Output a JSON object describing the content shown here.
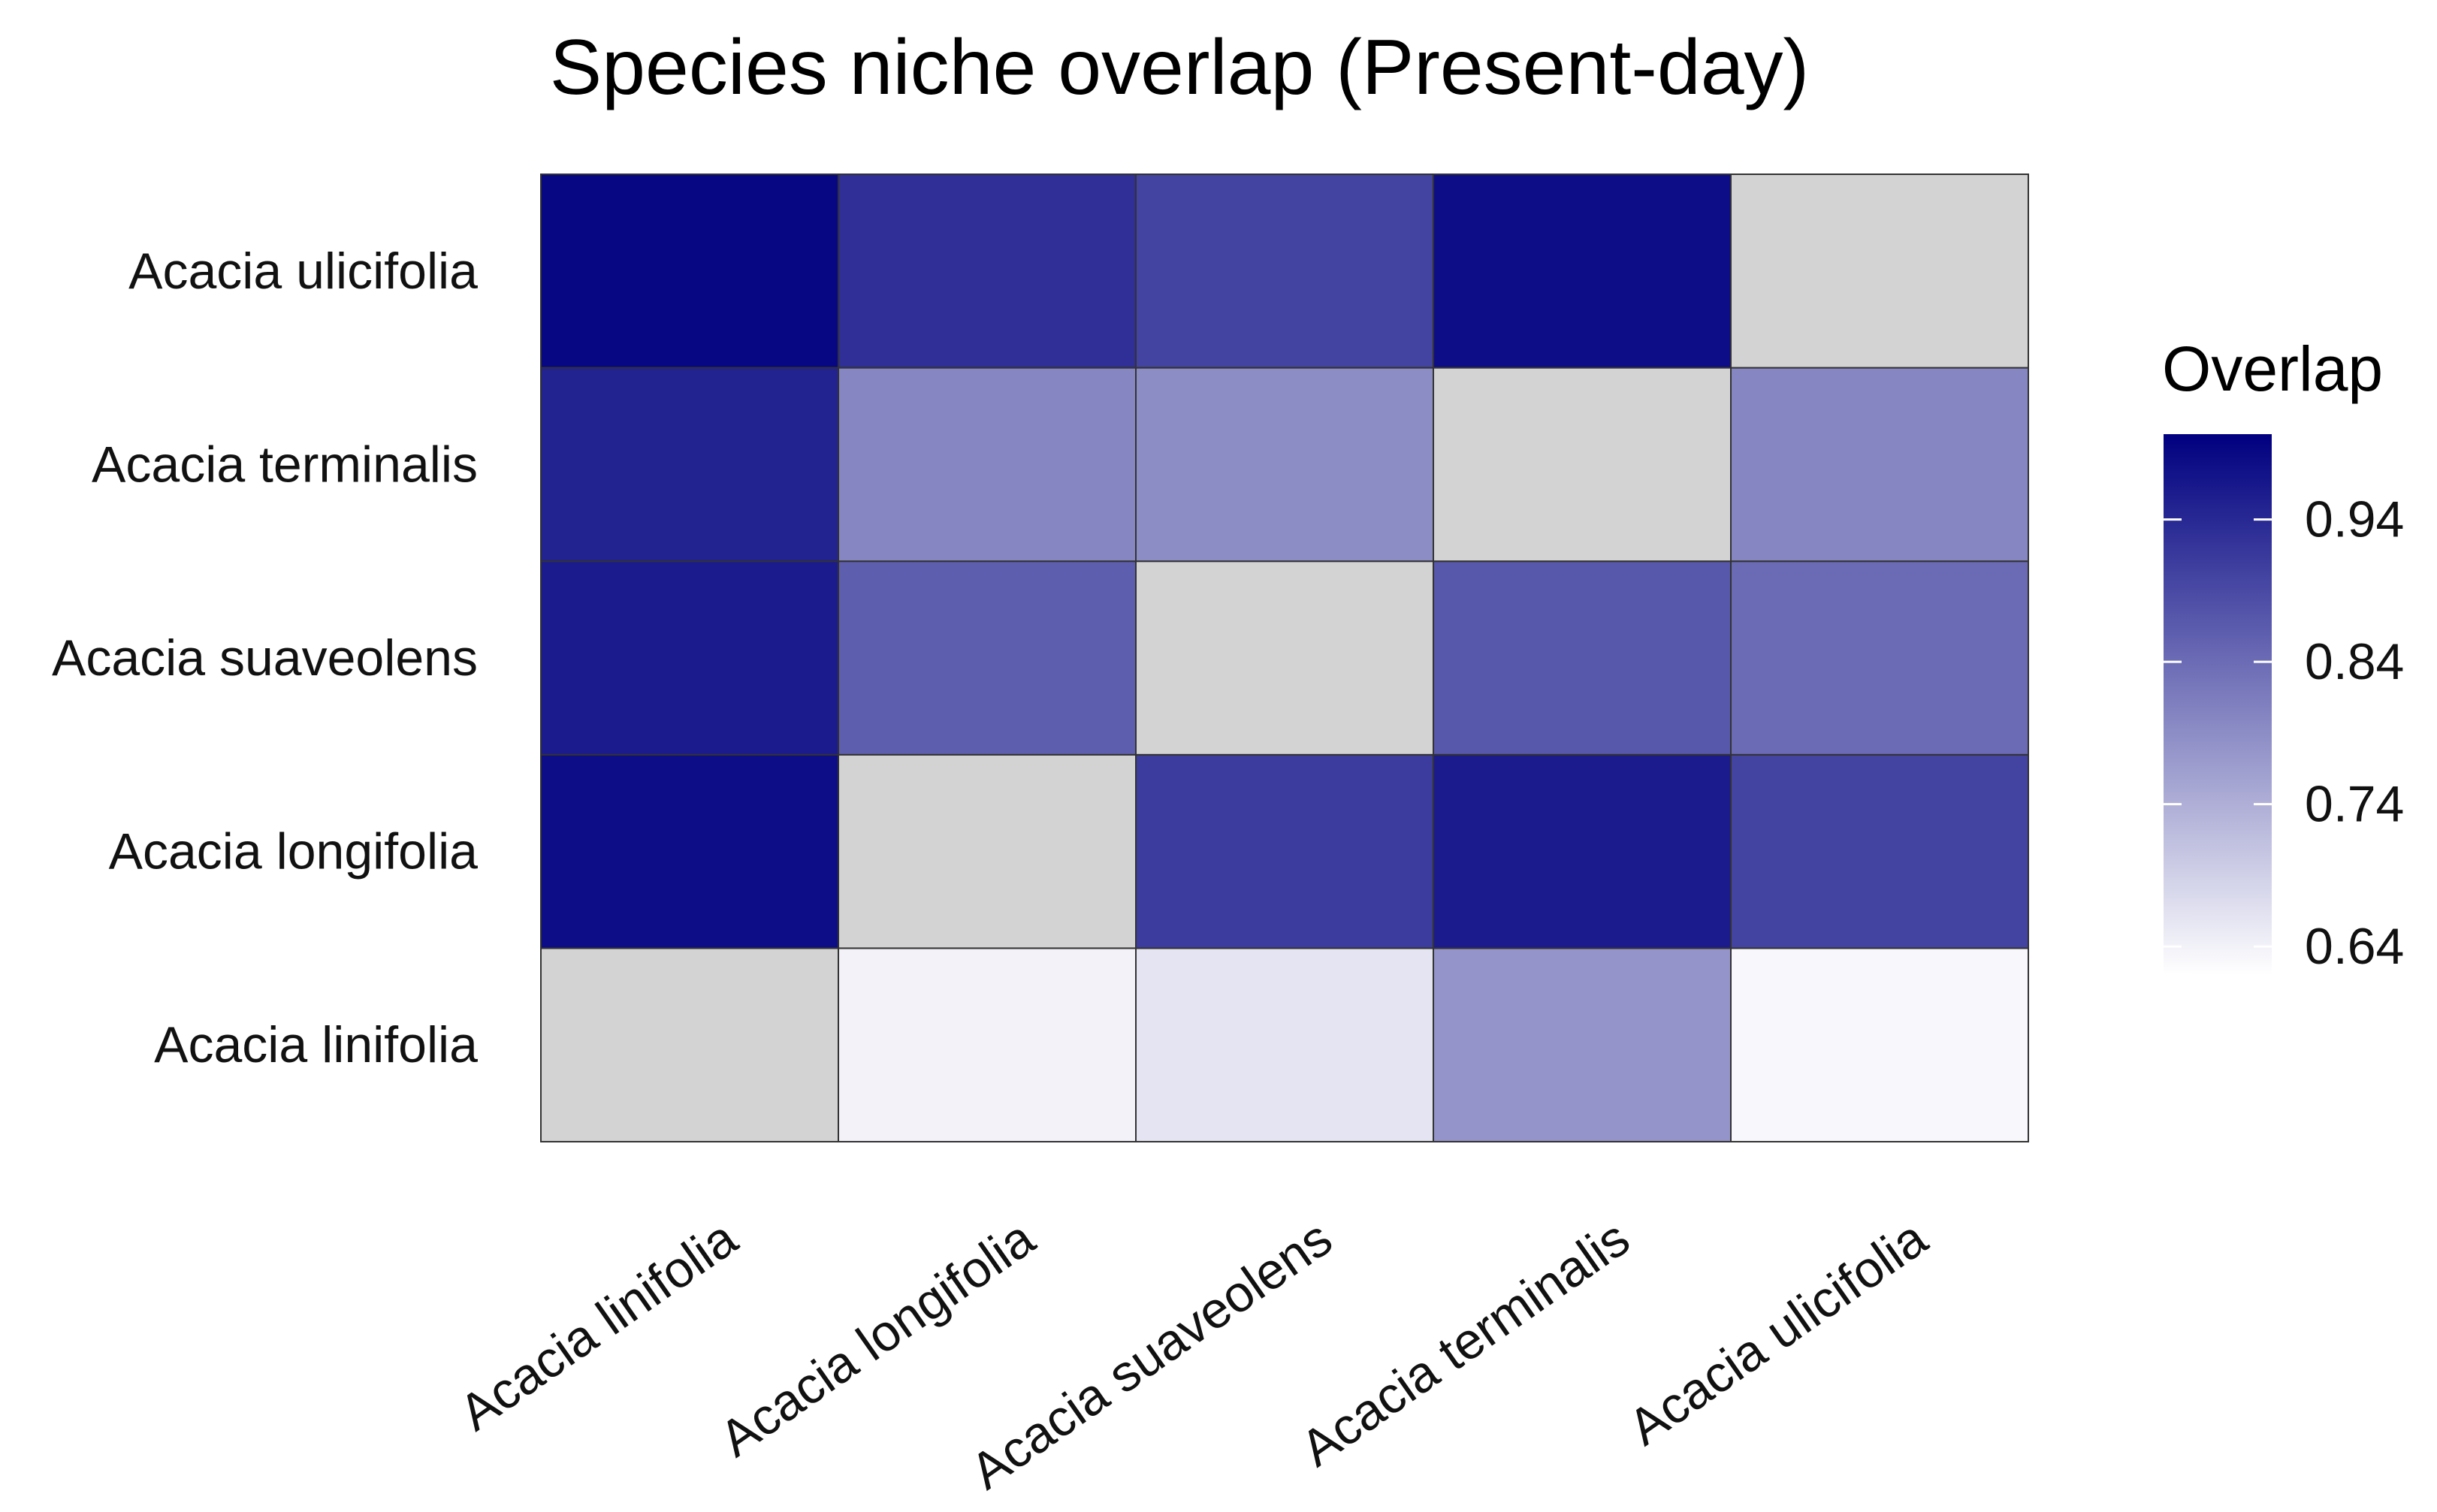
{
  "chart_data": {
    "type": "heatmap",
    "title": "Species niche overlap (Present-day)",
    "x_categories": [
      "Acacia linifolia",
      "Acacia longifolia",
      "Acacia suaveolens",
      "Acacia terminalis",
      "Acacia ulicifolia"
    ],
    "y_categories": [
      "Acacia linifolia",
      "Acacia longifolia",
      "Acacia suaveolens",
      "Acacia terminalis",
      "Acacia ulicifolia"
    ],
    "values": [
      [
        null,
        0.98,
        0.96,
        0.95,
        0.99
      ],
      [
        0.64,
        null,
        0.86,
        0.8,
        0.93
      ],
      [
        0.66,
        0.91,
        null,
        0.79,
        0.9
      ],
      [
        0.78,
        0.96,
        0.87,
        null,
        0.98
      ],
      [
        0.63,
        0.9,
        0.84,
        0.8,
        null
      ]
    ],
    "na_color": "#d3d3d3",
    "color_low": "#ffffff",
    "color_high": "#000080",
    "legend": {
      "title": "Overlap",
      "min": 0.62,
      "max": 1.0,
      "ticks": [
        0.64,
        0.74,
        0.84,
        0.94
      ],
      "tick_labels": [
        "0.64",
        "0.74",
        "0.84",
        "0.94"
      ],
      "position": "right"
    }
  }
}
